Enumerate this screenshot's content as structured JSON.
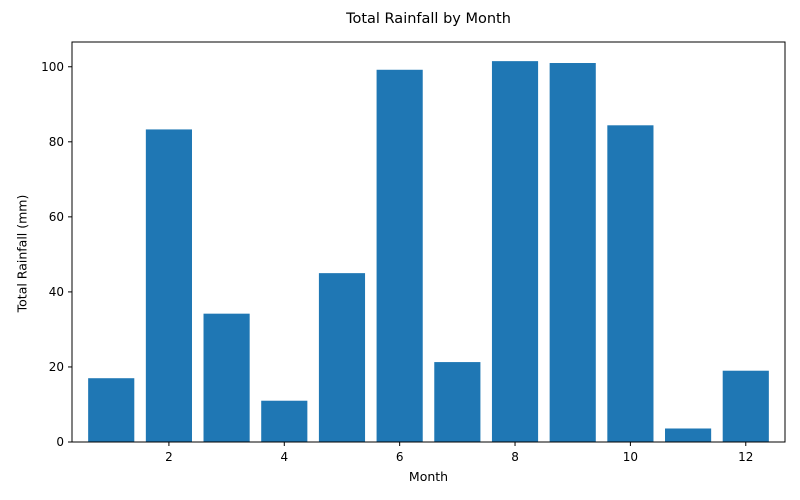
{
  "chart_data": {
    "type": "bar",
    "title": "Total Rainfall by Month",
    "xlabel": "Month",
    "ylabel": "Total Rainfall (mm)",
    "x": [
      1,
      2,
      3,
      4,
      5,
      6,
      7,
      8,
      9,
      10,
      11,
      12
    ],
    "values": [
      17.0,
      83.3,
      34.2,
      11.0,
      45.0,
      99.2,
      21.3,
      101.5,
      101.0,
      84.4,
      3.6,
      19.0
    ],
    "xlim": [
      0.32,
      12.68
    ],
    "ylim": [
      0,
      106.6
    ],
    "xticks": [
      2,
      4,
      6,
      8,
      10,
      12
    ],
    "yticks": [
      0,
      20,
      40,
      60,
      80,
      100
    ],
    "bar_color": "#1f77b4",
    "grid": false,
    "legend": "none"
  }
}
